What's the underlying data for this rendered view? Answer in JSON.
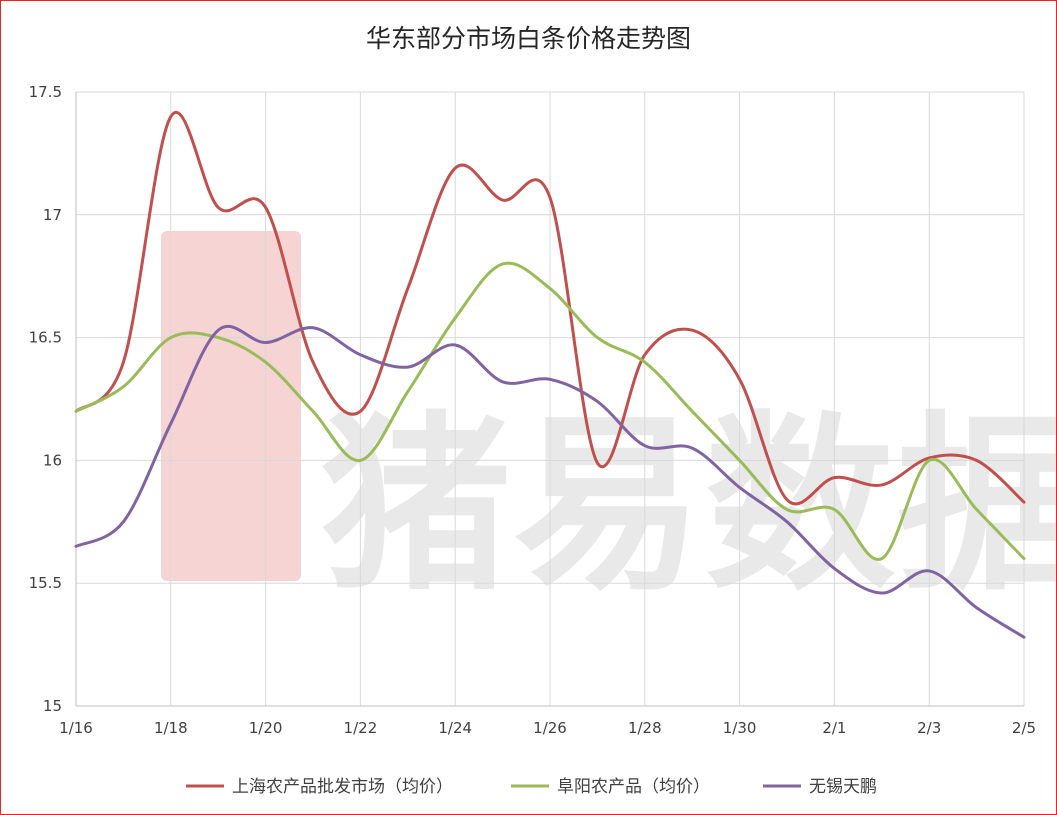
{
  "chart_data": {
    "type": "line",
    "title": "华东部分市场白条价格走势图",
    "xlabel": "",
    "ylabel": "",
    "ylim": [
      15,
      17.5
    ],
    "yticks": [
      15,
      15.5,
      16,
      16.5,
      17,
      17.5
    ],
    "ytick_labels": [
      "15",
      "15.5",
      "16",
      "16.5",
      "17",
      "17.5"
    ],
    "x": [
      "1/16",
      "1/17",
      "1/18",
      "1/19",
      "1/20",
      "1/21",
      "1/22",
      "1/23",
      "1/24",
      "1/25",
      "1/26",
      "1/27",
      "1/28",
      "1/29",
      "1/30",
      "1/31",
      "2/1",
      "2/2",
      "2/3",
      "2/4",
      "2/5"
    ],
    "xtick_labels": [
      "1/16",
      "1/18",
      "1/20",
      "1/22",
      "1/24",
      "1/26",
      "1/28",
      "1/30",
      "2/1",
      "2/3",
      "2/5"
    ],
    "grid": true,
    "legend_position": "bottom",
    "watermark": "猪易数据",
    "series": [
      {
        "name": "上海农产品批发市场（均价）",
        "color": "#c0504d",
        "values": [
          16.2,
          16.4,
          17.4,
          17.03,
          17.03,
          16.4,
          16.2,
          16.7,
          17.19,
          17.06,
          17.07,
          15.99,
          16.43,
          16.53,
          16.33,
          15.84,
          15.93,
          15.9,
          16.01,
          16.0,
          15.83
        ]
      },
      {
        "name": "阜阳农产品（均价）",
        "color": "#9bbb59",
        "values": [
          16.2,
          16.3,
          16.5,
          16.5,
          16.4,
          16.2,
          16.0,
          16.28,
          16.58,
          16.8,
          16.7,
          16.5,
          16.4,
          16.2,
          16.0,
          15.8,
          15.8,
          15.6,
          16.0,
          15.8,
          15.6
        ]
      },
      {
        "name": "无锡天鹏",
        "color": "#8064a2",
        "values": [
          15.65,
          15.75,
          16.15,
          16.53,
          16.48,
          16.54,
          16.43,
          16.38,
          16.47,
          16.32,
          16.33,
          16.24,
          16.06,
          16.05,
          15.89,
          15.75,
          15.56,
          15.46,
          15.55,
          15.4,
          15.28
        ]
      }
    ]
  }
}
